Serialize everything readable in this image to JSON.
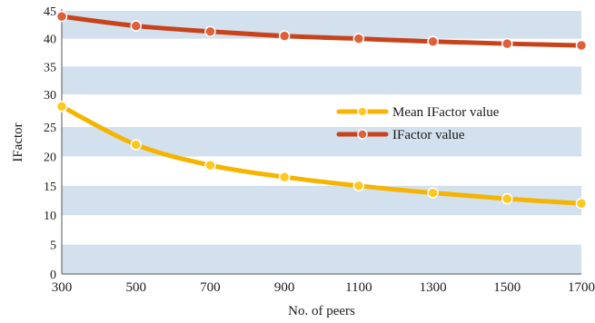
{
  "chart_data": {
    "type": "line",
    "title": "",
    "xlabel": "No. of peers",
    "ylabel": "IFactor",
    "x": [
      300,
      500,
      700,
      900,
      1100,
      1300,
      1500,
      1700
    ],
    "xlim": [
      300,
      1700
    ],
    "upper_panel": {
      "ylim": [
        30,
        45
      ],
      "yticks": [
        30,
        35,
        40,
        45
      ]
    },
    "lower_panel": {
      "ylim": [
        0,
        29
      ],
      "yticks": [
        0,
        5,
        10,
        15,
        20,
        25
      ]
    },
    "series": [
      {
        "name": "IFactor value",
        "color": "#c8421a",
        "marker_color": "#e0603a",
        "panel": "upper",
        "values": [
          44,
          42.3,
          41.3,
          40.5,
          40,
          39.5,
          39.1,
          38.8
        ]
      },
      {
        "name": "Mean IFactor value",
        "color": "#f5b400",
        "marker_color": "#ffc820",
        "panel": "lower",
        "values": [
          28.5,
          22,
          18.5,
          16.5,
          15,
          13.8,
          12.8,
          12
        ]
      }
    ],
    "legend": {
      "placement": "center-right",
      "order": [
        "Mean IFactor value",
        "IFactor value"
      ]
    },
    "background": {
      "band_color": "#d3e0ee",
      "band_fill": "alternating"
    }
  }
}
